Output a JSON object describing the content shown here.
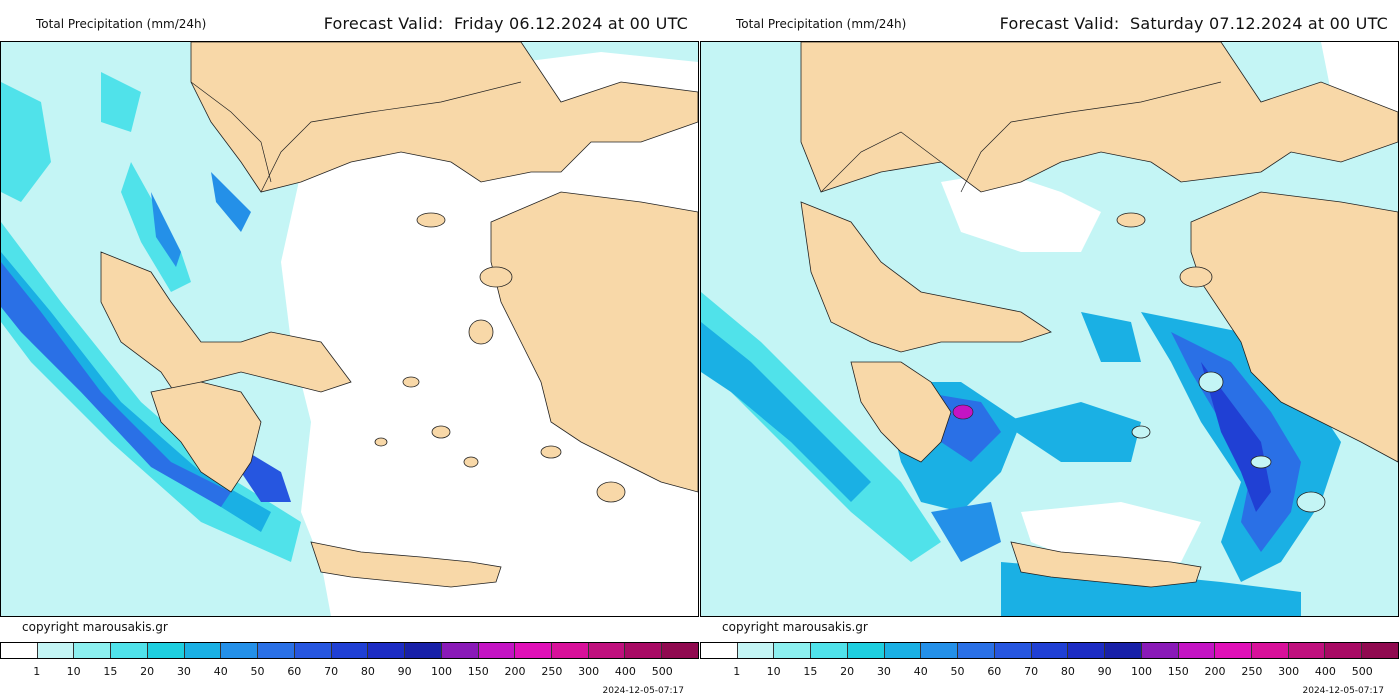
{
  "panels": [
    {
      "title": "Total Precipitation (mm/24h)",
      "forecast_valid": "Forecast Valid:  Friday 06.12.2024 at 00 UTC",
      "copyright": "copyright marousakis.gr",
      "timestamp": "2024-12-05-07:17"
    },
    {
      "title": "Total Precipitation (mm/24h)",
      "forecast_valid": "Forecast Valid:  Saturday 07.12.2024 at 00 UTC",
      "copyright": "copyright marousakis.gr",
      "timestamp": "2024-12-05-07:17"
    }
  ],
  "legend": {
    "labels": [
      "1",
      "10",
      "15",
      "20",
      "30",
      "40",
      "50",
      "60",
      "70",
      "80",
      "90",
      "100",
      "150",
      "200",
      "250",
      "300",
      "400",
      "500"
    ],
    "colors": [
      "#ffffff",
      "#c4f5f5",
      "#8cf0f0",
      "#50e2ea",
      "#1ecfe0",
      "#1ab0e4",
      "#2490e8",
      "#2a70e6",
      "#2656e0",
      "#2040d4",
      "#1c2cc4",
      "#1820a8",
      "#8a1ab8",
      "#c414c4",
      "#e010b8",
      "#d8109a",
      "#c0107e",
      "#a80a64",
      "#900a50"
    ]
  },
  "colors": {
    "land": "#f8d8a8",
    "sea_dry": "#ffffff",
    "rain_light": "#c4f5f5",
    "rain_mod": "#50e2ea",
    "rain_heavy": "#2a70e6",
    "rain_very_heavy": "#2040d4"
  }
}
